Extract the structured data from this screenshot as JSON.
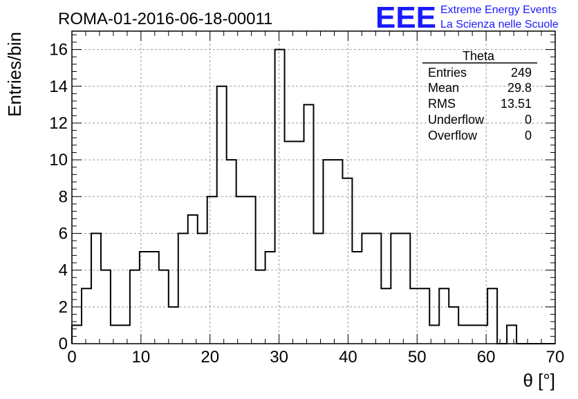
{
  "header": {
    "title": "ROMA-01-2016-06-18-00011",
    "logo_text": "EEE",
    "logo_line1": "Extreme Energy Events",
    "logo_line2": "La Scienza nelle Scuole",
    "logo_color": "#1a1aff"
  },
  "stats_box": {
    "name": "Theta",
    "rows": [
      {
        "label": "Entries",
        "value": "249"
      },
      {
        "label": "Mean",
        "value": "29.8"
      },
      {
        "label": "RMS",
        "value": "13.51"
      },
      {
        "label": "Underflow",
        "value": "0"
      },
      {
        "label": "Overflow",
        "value": "0"
      }
    ]
  },
  "chart_data": {
    "type": "histogram",
    "title": "ROMA-01-2016-06-18-00011",
    "xlabel": "θ [°]",
    "ylabel": "Entries/bin",
    "xlim": [
      0,
      70
    ],
    "ylim": [
      0,
      17
    ],
    "bin_width": 1.4,
    "bin_start": 0,
    "x_ticks": [
      0,
      10,
      20,
      30,
      40,
      50,
      60,
      70
    ],
    "y_ticks": [
      0,
      2,
      4,
      6,
      8,
      10,
      12,
      14,
      16
    ],
    "grid": true,
    "counts": [
      1,
      3,
      6,
      4,
      1,
      1,
      4,
      5,
      5,
      4,
      2,
      6,
      7,
      6,
      8,
      14,
      10,
      8,
      8,
      4,
      5,
      16,
      11,
      11,
      13,
      6,
      10,
      10,
      9,
      5,
      6,
      6,
      3,
      6,
      6,
      3,
      3,
      1,
      3,
      2,
      1,
      1,
      1,
      3,
      0,
      1,
      0,
      0,
      0,
      0
    ],
    "line_color": "#000000"
  }
}
